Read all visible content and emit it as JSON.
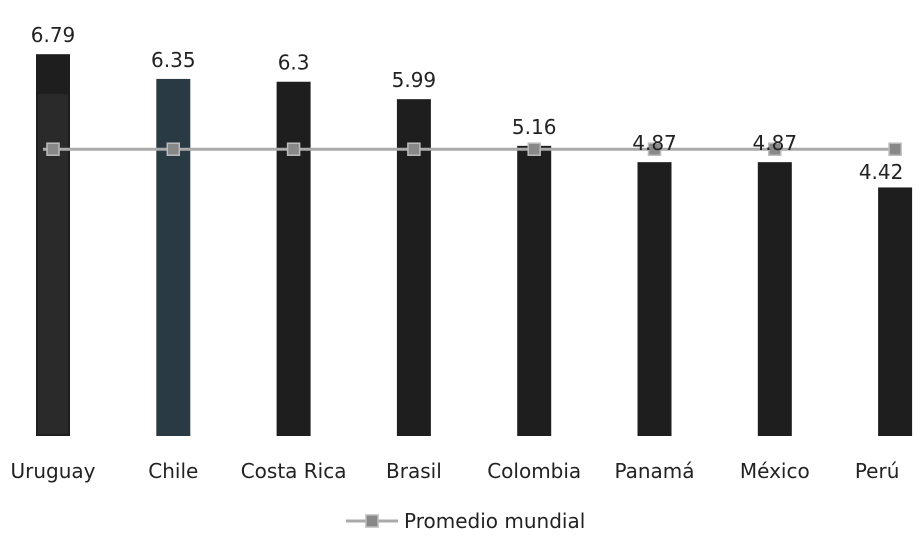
{
  "chart_data": {
    "type": "bar",
    "categories": [
      "Uruguay",
      "Chile",
      "Costa Rica",
      "Brasil",
      "Colombia",
      "Panamá",
      "México",
      "Perú"
    ],
    "series": [
      {
        "values": [
          6.79,
          6.35,
          6.3,
          5.99,
          5.16,
          4.87,
          4.87,
          4.42
        ],
        "value_labels": [
          "6.79",
          "6.35",
          "6.3",
          "5.99",
          "5.16",
          "4.87",
          "4.87",
          "4.42"
        ],
        "color": "#1e1e1e",
        "highlight_color": "#2a3a45"
      },
      {
        "name": "Promedio mundial",
        "type": "line",
        "values": [
          5.1,
          5.1,
          5.1,
          5.1,
          5.1,
          5.1,
          5.1,
          5.1
        ],
        "color": "#aaaaaa",
        "marker_color": "#888888"
      }
    ],
    "ylim": [
      0,
      6.9
    ],
    "grid": false,
    "legend_position": "bottom-center",
    "title": "",
    "xlabel": "",
    "ylabel": ""
  }
}
